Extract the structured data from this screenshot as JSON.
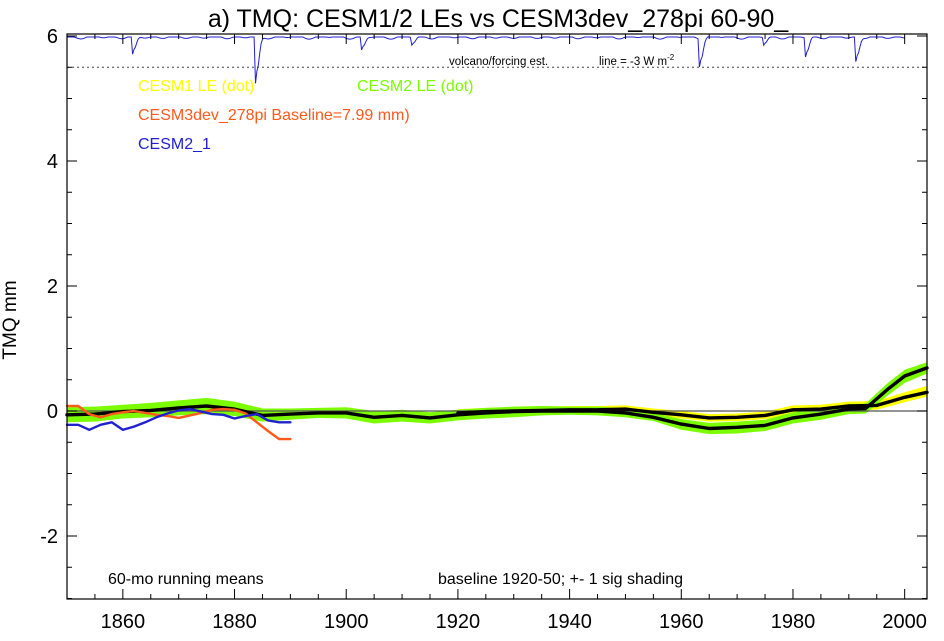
{
  "chart_data": {
    "type": "line",
    "title": "a) TMQ: CESM1/2 LEs vs CESM3dev_278pi 60-90_",
    "ylabel": "TMQ mm",
    "xlabel": "",
    "xlim": [
      1850,
      2004
    ],
    "ylim": [
      -3,
      6
    ],
    "x_ticks": [
      1860,
      1880,
      1900,
      1920,
      1940,
      1960,
      1980,
      2000
    ],
    "y_ticks": [
      -2,
      0,
      2,
      4,
      6
    ],
    "y_tick_labels": [
      "-2",
      "0",
      "2",
      "4",
      "6"
    ],
    "grid": false,
    "zero_line": true,
    "legend": [
      {
        "label": "CESM1 LE (dot)",
        "color": "#ffff00"
      },
      {
        "label": "CESM2 LE (dot)",
        "color": "#7cfc00"
      },
      {
        "label": "CESM3dev_278pi Baseline=7.99 mm)",
        "color": "#ff5a1a"
      },
      {
        "label": "CESM2_1",
        "color": "#2020d0"
      }
    ],
    "annotations": {
      "volcano_label": "volcano/forcing est.",
      "line_label": "line = -3 W m",
      "line_label_sup": "-2",
      "bottom_left": "60-mo running means",
      "bottom_right": "baseline 1920-50; +- 1 sig shading"
    },
    "reference_line_y": 5.5,
    "series": [
      {
        "name": "CESM1 LE (dot)",
        "color": "#ffff00",
        "kind": "band",
        "x": [
          1920,
          1925,
          1930,
          1935,
          1940,
          1945,
          1950,
          1955,
          1960,
          1965,
          1970,
          1975,
          1980,
          1985,
          1990,
          1995,
          2000,
          2004
        ],
        "lo": [
          -0.09,
          -0.07,
          -0.06,
          -0.05,
          -0.04,
          -0.04,
          -0.03,
          -0.08,
          -0.12,
          -0.17,
          -0.16,
          -0.13,
          -0.05,
          -0.04,
          0.01,
          0.02,
          0.14,
          0.23
        ],
        "hi": [
          0.03,
          0.05,
          0.06,
          0.07,
          0.08,
          0.08,
          0.09,
          0.04,
          0.0,
          -0.05,
          -0.04,
          -0.01,
          0.09,
          0.1,
          0.15,
          0.16,
          0.3,
          0.4
        ]
      },
      {
        "name": "CESM2 LE (dot)",
        "color": "#7cfc00",
        "kind": "band",
        "x": [
          1850,
          1855,
          1860,
          1865,
          1870,
          1875,
          1880,
          1885,
          1890,
          1895,
          1900,
          1905,
          1910,
          1915,
          1920,
          1925,
          1930,
          1935,
          1940,
          1945,
          1950,
          1955,
          1960,
          1965,
          1970,
          1975,
          1980,
          1985,
          1990,
          1993,
          1997,
          2000,
          2004
        ],
        "lo": [
          -0.18,
          -0.17,
          -0.12,
          -0.1,
          -0.07,
          -0.05,
          -0.08,
          -0.17,
          -0.14,
          -0.11,
          -0.12,
          -0.2,
          -0.17,
          -0.2,
          -0.15,
          -0.12,
          -0.1,
          -0.07,
          -0.06,
          -0.07,
          -0.1,
          -0.16,
          -0.3,
          -0.37,
          -0.36,
          -0.32,
          -0.2,
          -0.14,
          -0.05,
          -0.04,
          0.25,
          0.45,
          0.6
        ],
        "hi": [
          0.06,
          0.07,
          0.1,
          0.13,
          0.17,
          0.21,
          0.15,
          0.04,
          0.04,
          0.05,
          0.06,
          0.0,
          0.02,
          -0.02,
          0.02,
          0.05,
          0.07,
          0.08,
          0.07,
          0.07,
          0.04,
          -0.03,
          -0.13,
          -0.19,
          -0.17,
          -0.14,
          -0.02,
          0.04,
          0.11,
          0.12,
          0.45,
          0.66,
          0.78
        ]
      },
      {
        "name": "CESM1 LE mean",
        "color": "#000000",
        "kind": "line",
        "x": [
          1920,
          1925,
          1930,
          1935,
          1940,
          1945,
          1950,
          1955,
          1960,
          1965,
          1970,
          1975,
          1980,
          1985,
          1990,
          1995,
          2000,
          2004
        ],
        "y": [
          -0.03,
          -0.01,
          0.0,
          0.01,
          0.02,
          0.02,
          0.03,
          -0.02,
          -0.06,
          -0.11,
          -0.1,
          -0.07,
          0.02,
          0.03,
          0.08,
          0.09,
          0.22,
          0.3
        ]
      },
      {
        "name": "CESM2 LE mean",
        "color": "#000000",
        "kind": "line",
        "x": [
          1850,
          1855,
          1860,
          1865,
          1870,
          1875,
          1880,
          1885,
          1890,
          1895,
          1900,
          1905,
          1910,
          1915,
          1920,
          1925,
          1930,
          1935,
          1940,
          1945,
          1950,
          1955,
          1960,
          1965,
          1970,
          1975,
          1980,
          1985,
          1990,
          1993,
          1997,
          2000,
          2004
        ],
        "y": [
          -0.06,
          -0.05,
          -0.01,
          0.01,
          0.05,
          0.08,
          0.03,
          -0.07,
          -0.05,
          -0.03,
          -0.03,
          -0.1,
          -0.07,
          -0.11,
          -0.06,
          -0.03,
          -0.01,
          0.0,
          0.0,
          0.0,
          -0.03,
          -0.1,
          -0.21,
          -0.28,
          -0.26,
          -0.23,
          -0.11,
          -0.05,
          0.03,
          0.04,
          0.35,
          0.56,
          0.69
        ]
      },
      {
        "name": "CESM3dev_278pi Baseline=7.99 mm)",
        "color": "#ff5a1a",
        "kind": "line",
        "x": [
          1850,
          1852,
          1854,
          1856,
          1858,
          1860,
          1862,
          1864,
          1866,
          1868,
          1870,
          1872,
          1874,
          1876,
          1878,
          1880,
          1882,
          1884,
          1886,
          1888,
          1890
        ],
        "y": [
          0.08,
          0.08,
          -0.05,
          -0.1,
          -0.05,
          -0.02,
          0.0,
          -0.03,
          -0.06,
          -0.08,
          -0.11,
          -0.07,
          -0.03,
          0.02,
          0.03,
          0.02,
          -0.04,
          -0.18,
          -0.32,
          -0.45,
          -0.45
        ]
      },
      {
        "name": "CESM2_1",
        "color": "#2020d0",
        "kind": "line",
        "x": [
          1850,
          1852,
          1854,
          1856,
          1858,
          1860,
          1862,
          1864,
          1866,
          1868,
          1870,
          1872,
          1874,
          1876,
          1878,
          1880,
          1882,
          1884,
          1886,
          1888,
          1890
        ],
        "y": [
          -0.22,
          -0.22,
          -0.3,
          -0.22,
          -0.18,
          -0.3,
          -0.25,
          -0.18,
          -0.1,
          -0.04,
          0.01,
          0.03,
          -0.01,
          -0.05,
          -0.06,
          -0.12,
          -0.08,
          -0.05,
          -0.15,
          -0.18,
          -0.18
        ]
      }
    ],
    "volcano_dips": [
      {
        "x": 1862,
        "depth": 0.4
      },
      {
        "x": 1884,
        "depth": 1.0
      },
      {
        "x": 1903,
        "depth": 0.3
      },
      {
        "x": 1912,
        "depth": 0.16
      },
      {
        "x": 1963.5,
        "depth": 0.58
      },
      {
        "x": 1975,
        "depth": 0.16
      },
      {
        "x": 1982.5,
        "depth": 0.4
      },
      {
        "x": 1991.5,
        "depth": 0.52
      }
    ]
  }
}
